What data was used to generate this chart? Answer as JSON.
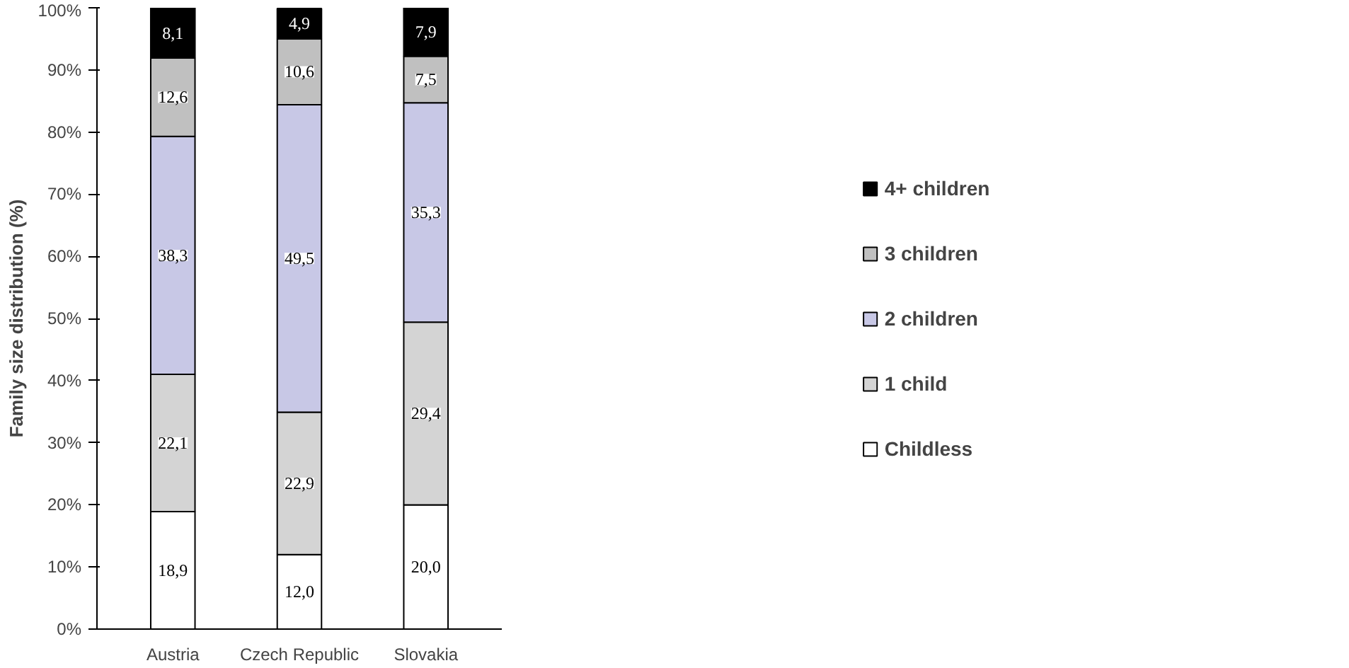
{
  "chart_data": {
    "type": "bar",
    "stacked": true,
    "ylabel": "Family size distribution (%)",
    "categories": [
      "Austria",
      "Czech Republic",
      "Slovakia"
    ],
    "series": [
      {
        "name": "Childless",
        "color": "#ffffff",
        "values": [
          18.9,
          12.0,
          20.0
        ],
        "value_labels": [
          "18,9",
          "12,0",
          "20,0"
        ]
      },
      {
        "name": "1 child",
        "color": "#d4d4d4",
        "values": [
          22.1,
          22.9,
          29.4
        ],
        "value_labels": [
          "22,1",
          "22,9",
          "29,4"
        ]
      },
      {
        "name": "2 children",
        "color": "#c8c8e6",
        "values": [
          38.3,
          49.5,
          35.3
        ],
        "value_labels": [
          "38,3",
          "49,5",
          "35,3"
        ]
      },
      {
        "name": "3 children",
        "color": "#c0c0c0",
        "values": [
          12.6,
          10.6,
          7.5
        ],
        "value_labels": [
          "12,6",
          "10,6",
          "7,5"
        ]
      },
      {
        "name": "4+ children",
        "color": "#000000",
        "values": [
          8.1,
          4.9,
          7.9
        ],
        "value_labels": [
          "8,1",
          "4,9",
          "7,9"
        ]
      }
    ],
    "ylim": [
      0,
      100
    ],
    "yticks": [
      {
        "value": 0,
        "label": "0%"
      },
      {
        "value": 10,
        "label": "10%"
      },
      {
        "value": 20,
        "label": "20%"
      },
      {
        "value": 30,
        "label": "30%"
      },
      {
        "value": 40,
        "label": "40%"
      },
      {
        "value": 50,
        "label": "50%"
      },
      {
        "value": 60,
        "label": "60%"
      },
      {
        "value": 70,
        "label": "70%"
      },
      {
        "value": 80,
        "label": "80%"
      },
      {
        "value": 90,
        "label": "90%"
      },
      {
        "value": 100,
        "label": "100%"
      }
    ],
    "grid": false,
    "legend": "right"
  }
}
